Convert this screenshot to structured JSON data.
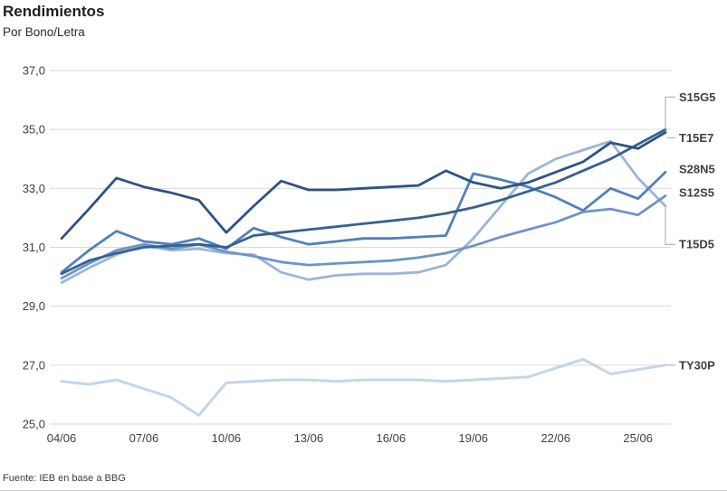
{
  "header": {
    "title": "Rendimientos",
    "subtitle": "Por Bono/Letra"
  },
  "footer": {
    "source": "Fuente: IEB en base a BBG"
  },
  "chart_data": {
    "type": "line",
    "title": "Rendimientos",
    "subtitle": "Por Bono/Letra",
    "x_dates": [
      "04/06",
      "05/06",
      "06/06",
      "07/06",
      "08/06",
      "09/06",
      "10/06",
      "11/06",
      "12/06",
      "13/06",
      "14/06",
      "15/06",
      "16/06",
      "17/06",
      "18/06",
      "19/06",
      "20/06",
      "21/06",
      "22/06",
      "23/06",
      "24/06",
      "25/06",
      "26/06"
    ],
    "x_tick_labels": [
      "04/06",
      "07/06",
      "10/06",
      "13/06",
      "16/06",
      "19/06",
      "22/06",
      "25/06"
    ],
    "x_tick_indices": [
      0,
      3,
      6,
      9,
      12,
      15,
      18,
      21
    ],
    "ylim": [
      25,
      37
    ],
    "y_ticks": [
      37,
      35,
      33,
      31,
      29,
      27,
      25
    ],
    "y_tick_labels": [
      "37,0",
      "35,0",
      "33,0",
      "31,0",
      "29,0",
      "27,0",
      "25,0"
    ],
    "grid": "horizontal",
    "gridline_color": "#d9d9d9",
    "leader_color": "#a6a6a6",
    "axis_text_color": "#404040",
    "legend_position": "right-of-line-end",
    "series": [
      {
        "name": "TY30P",
        "color": "#c5d5ea",
        "width": 3,
        "label_at": 27.0,
        "leader": true,
        "values": [
          26.45,
          26.35,
          26.5,
          26.2,
          25.9,
          25.3,
          26.4,
          26.45,
          26.5,
          26.5,
          26.45,
          26.5,
          26.5,
          26.5,
          26.45,
          26.5,
          26.55,
          26.6,
          26.9,
          27.2,
          26.7,
          26.85,
          27.0
        ]
      },
      {
        "name": "T15D5",
        "color": "#9ab5d9",
        "width": 2.8,
        "label_at": 31.1,
        "leader": true,
        "values": [
          29.8,
          30.3,
          30.75,
          31.05,
          30.9,
          30.95,
          30.8,
          30.75,
          30.15,
          29.9,
          30.05,
          30.1,
          30.1,
          30.15,
          30.4,
          31.3,
          32.4,
          33.5,
          34.0,
          34.3,
          34.6,
          33.35,
          32.4
        ]
      },
      {
        "name": "S12S5",
        "color": "#6f94c4",
        "width": 2.8,
        "label_at": 32.85,
        "leader": false,
        "values": [
          29.95,
          30.45,
          30.9,
          31.1,
          30.95,
          31.1,
          30.85,
          30.7,
          30.5,
          30.4,
          30.45,
          30.5,
          30.55,
          30.65,
          30.8,
          31.05,
          31.35,
          31.6,
          31.85,
          32.2,
          32.3,
          32.1,
          32.75
        ]
      },
      {
        "name": "S28N5",
        "color": "#4f81bd",
        "width": 2.8,
        "label_at": 33.65,
        "leader": false,
        "values": [
          30.15,
          30.9,
          31.55,
          31.2,
          31.1,
          31.3,
          30.95,
          31.65,
          31.35,
          31.1,
          31.2,
          31.3,
          31.3,
          31.35,
          31.4,
          33.5,
          33.3,
          33.05,
          32.7,
          32.25,
          33.0,
          32.65,
          33.55
        ]
      },
      {
        "name": "S15G5",
        "color": "#35618f",
        "width": 2.8,
        "label_at": 36.1,
        "leader": true,
        "values": [
          30.1,
          30.55,
          30.8,
          31.0,
          31.05,
          31.1,
          31.0,
          31.4,
          31.5,
          31.6,
          31.7,
          31.8,
          31.9,
          32.0,
          32.15,
          32.35,
          32.6,
          32.9,
          33.2,
          33.6,
          34.0,
          34.5,
          35.0
        ]
      },
      {
        "name": "T15E7",
        "color": "#2d5380",
        "width": 2.8,
        "label_at": 34.72,
        "leader": true,
        "values": [
          31.3,
          32.3,
          33.35,
          33.05,
          32.85,
          32.6,
          31.5,
          32.4,
          33.25,
          32.95,
          32.95,
          33.0,
          33.05,
          33.1,
          33.6,
          33.2,
          33.0,
          33.2,
          33.55,
          33.9,
          34.55,
          34.35,
          34.9
        ]
      }
    ]
  }
}
